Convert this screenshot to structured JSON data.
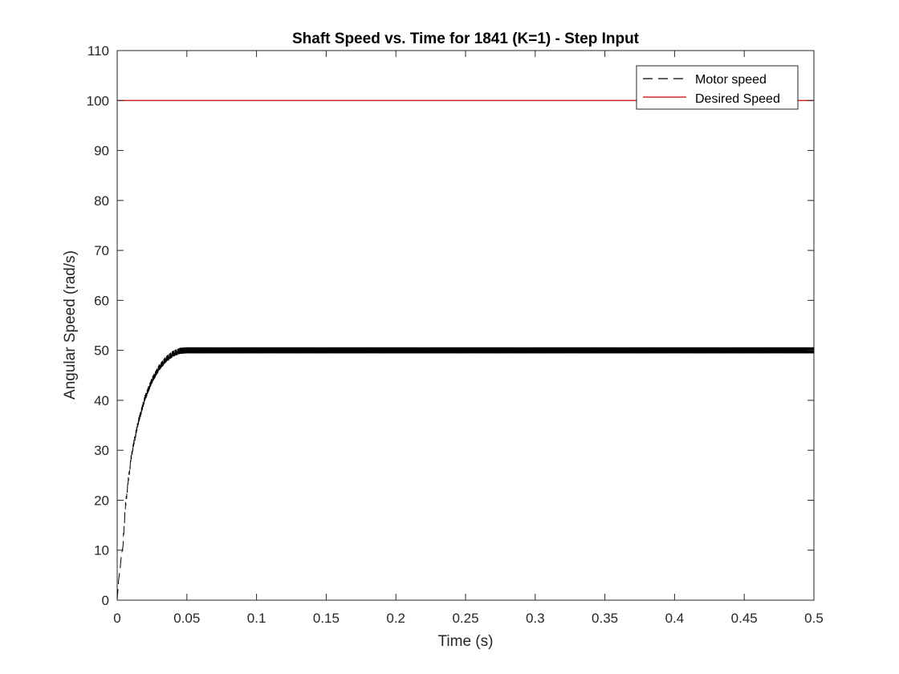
{
  "chart_data": {
    "type": "line",
    "title": "Shaft Speed vs. Time for 1841 (K=1) - Step Input",
    "xlabel": "Time (s)",
    "ylabel": "Angular Speed (rad/s)",
    "xlim": [
      0,
      0.5
    ],
    "ylim": [
      0,
      110
    ],
    "xticks": [
      0,
      0.05,
      0.1,
      0.15,
      0.2,
      0.25,
      0.3,
      0.35,
      0.4,
      0.45,
      0.5
    ],
    "xtick_labels": [
      "0",
      "0.05",
      "0.1",
      "0.15",
      "0.2",
      "0.25",
      "0.3",
      "0.35",
      "0.4",
      "0.45",
      "0.5"
    ],
    "yticks": [
      0,
      10,
      20,
      30,
      40,
      50,
      60,
      70,
      80,
      90,
      100,
      110
    ],
    "ytick_labels": [
      "0",
      "10",
      "20",
      "30",
      "40",
      "50",
      "60",
      "70",
      "80",
      "90",
      "100",
      "110"
    ],
    "grid": false,
    "legend_position": "top-right",
    "series": [
      {
        "name": "Motor speed",
        "color": "#000000",
        "line_style": "dashed",
        "x": [
          0,
          0.001,
          0.002,
          0.003,
          0.004,
          0.005,
          0.006,
          0.008,
          0.01,
          0.012,
          0.015,
          0.018,
          0.02,
          0.025,
          0.03,
          0.035,
          0.04,
          0.045,
          0.05,
          0.06,
          0.1,
          0.2,
          0.3,
          0.4,
          0.5
        ],
        "y": [
          0,
          4,
          6,
          9,
          10.5,
          15,
          19,
          24,
          28.5,
          31.5,
          35.5,
          38.5,
          40.5,
          44,
          46.5,
          48.2,
          49.3,
          49.9,
          50,
          50,
          50,
          50,
          50,
          50,
          50
        ],
        "ripple_amplitude": 0.6
      },
      {
        "name": "Desired Speed",
        "color": "#cc0000",
        "line_style": "solid",
        "x": [
          0,
          0.5
        ],
        "y": [
          100,
          100
        ]
      }
    ]
  }
}
